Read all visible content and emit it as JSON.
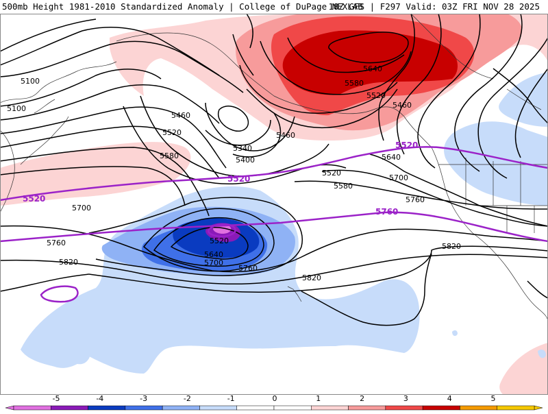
{
  "header": {
    "title": "500mb Height 1981-2010 Standardized Anomaly | College of DuPage NEXLAB",
    "run_info": "18Z GFS | F297 Valid: 03Z FRI NOV 28 2025"
  },
  "colors": {
    "neg5": "#e070e0",
    "neg4": "#8a1ab8",
    "neg3": "#0a3bc0",
    "neg2": "#3f70e8",
    "neg1_5": "#8fb2f5",
    "neg1": "#c7dcfa",
    "pos1": "#fcd4d4",
    "pos2": "#f79b9b",
    "pos3": "#f04848",
    "pos4": "#c80000",
    "pos5": "#f59b00",
    "highlight_contour": "#9b22c8",
    "contour": "#000000"
  },
  "contour_labels": [
    {
      "id": "l5100a",
      "text": "5100"
    },
    {
      "id": "l5100b",
      "text": "5100"
    },
    {
      "id": "l5460a",
      "text": "5460"
    },
    {
      "id": "l5520a",
      "text": "5520"
    },
    {
      "id": "l5580a",
      "text": "5580"
    },
    {
      "id": "l5340",
      "text": "5340"
    },
    {
      "id": "l5400",
      "text": "5400"
    },
    {
      "id": "l5460b",
      "text": "5460"
    },
    {
      "id": "l5520b",
      "text": "5520"
    },
    {
      "id": "l5580b",
      "text": "5580"
    },
    {
      "id": "l5640a",
      "text": "5640"
    },
    {
      "id": "l5580c",
      "text": "5580"
    },
    {
      "id": "l5520c",
      "text": "5520"
    },
    {
      "id": "l5460c",
      "text": "5460"
    },
    {
      "id": "l5640b",
      "text": "5640"
    },
    {
      "id": "l5700a",
      "text": "5700"
    },
    {
      "id": "l5760a",
      "text": "5760"
    },
    {
      "id": "l5700b",
      "text": "5700"
    },
    {
      "id": "l5760b",
      "text": "5760"
    },
    {
      "id": "l5640c",
      "text": "5640"
    },
    {
      "id": "l5700c",
      "text": "5700"
    },
    {
      "id": "l5520d",
      "text": "5520"
    },
    {
      "id": "l5760c",
      "text": "5760"
    },
    {
      "id": "l5820a",
      "text": "5820"
    },
    {
      "id": "l5820b",
      "text": "5820"
    },
    {
      "id": "l5820c",
      "text": "5820"
    }
  ],
  "highlight_labels": [
    {
      "id": "h5520a",
      "text": "5520"
    },
    {
      "id": "h5520b",
      "text": "5520"
    },
    {
      "id": "h5520c",
      "text": "5520"
    },
    {
      "id": "h5760",
      "text": "5760"
    }
  ],
  "colorbar": {
    "ticks": [
      "-5",
      "-4",
      "-3",
      "-2",
      "-1",
      "0",
      "1",
      "2",
      "3",
      "4",
      "5"
    ],
    "bins": [
      "#e070e0",
      "#8a1ab8",
      "#0a3bc0",
      "#3f70e8",
      "#8fb2f5",
      "#c7dcfa",
      "#ffffff",
      "#ffffff",
      "#fcd4d4",
      "#f79b9b",
      "#f04848",
      "#c80000",
      "#f59b00",
      "#f5c800"
    ]
  }
}
